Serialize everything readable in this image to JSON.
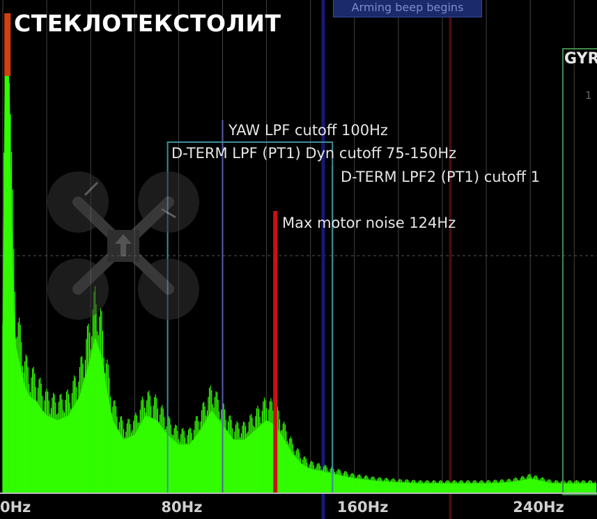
{
  "overlay_title": "СТЕКЛОТЕКСТОЛИТ",
  "arming_label": "Arming beep begins",
  "gyro_box_label": "GYR",
  "gyro_box_sub": "1",
  "chart_data": {
    "type": "area",
    "xlabel": "",
    "ylabel": "",
    "xlim": [
      0,
      270
    ],
    "ticks": [
      {
        "value": 0,
        "label": "0Hz"
      },
      {
        "value": 80,
        "label": "80Hz"
      },
      {
        "value": 160,
        "label": "160Hz"
      },
      {
        "value": 240,
        "label": "240Hz"
      }
    ],
    "series": [
      {
        "color": "#33ff00",
        "x": [
          0,
          1,
          2,
          3,
          4,
          5,
          6,
          8,
          10,
          12,
          15,
          18,
          20,
          25,
          30,
          35,
          40,
          42,
          45,
          47,
          50,
          55,
          60,
          65,
          70,
          75,
          80,
          85,
          90,
          95,
          100,
          105,
          110,
          115,
          120,
          124,
          128,
          132,
          136,
          140,
          145,
          150,
          155,
          160,
          170,
          180,
          190,
          200,
          210,
          220,
          230,
          235,
          240,
          245,
          250,
          260,
          270
        ],
        "y": [
          0.35,
          0.85,
          0.97,
          0.82,
          0.55,
          0.38,
          0.3,
          0.26,
          0.22,
          0.2,
          0.19,
          0.17,
          0.16,
          0.15,
          0.16,
          0.2,
          0.28,
          0.32,
          0.28,
          0.22,
          0.15,
          0.11,
          0.12,
          0.16,
          0.15,
          0.12,
          0.1,
          0.1,
          0.13,
          0.17,
          0.14,
          0.11,
          0.11,
          0.13,
          0.15,
          0.14,
          0.11,
          0.08,
          0.06,
          0.05,
          0.045,
          0.04,
          0.035,
          0.03,
          0.025,
          0.022,
          0.02,
          0.02,
          0.02,
          0.02,
          0.022,
          0.025,
          0.03,
          0.025,
          0.02,
          0.02,
          0.02
        ]
      }
    ],
    "markers": [
      {
        "label": "YAW LPF cutoff 100Hz",
        "x": 100,
        "color": "#5c5ca8"
      },
      {
        "label": "D-TERM LPF (PT1) Dyn cutoff 75-150Hz",
        "x": 75,
        "x2": 150,
        "color": "#3f8f9a"
      },
      {
        "label": "D-TERM LPF2 (PT1) cutoff 1",
        "x": 150,
        "color": "#3f8f9a"
      },
      {
        "label": "Max motor noise 124Hz",
        "x": 124,
        "color": "#cc1111"
      }
    ],
    "grid": true
  }
}
